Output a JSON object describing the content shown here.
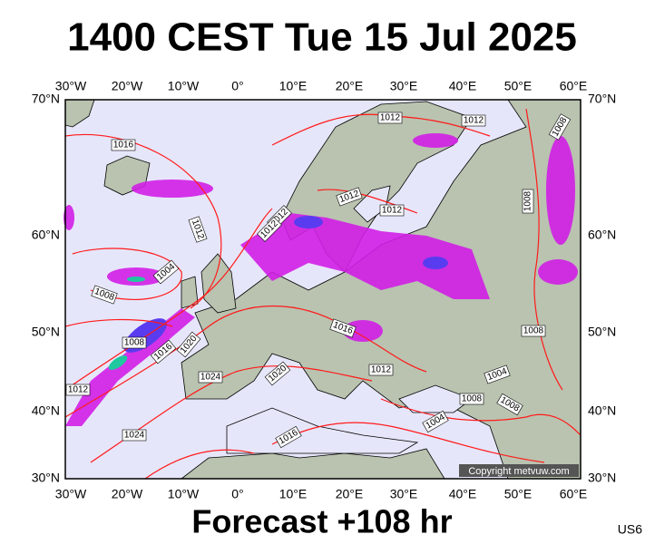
{
  "title": "1400 CEST Tue 15 Jul 2025",
  "lon_labels": [
    "30°W",
    "20°W",
    "10°W",
    "0°",
    "10°E",
    "20°E",
    "30°E",
    "40°E",
    "50°E",
    "60°E"
  ],
  "lat_labels": [
    "70°N",
    "60°N",
    "50°N",
    "40°N",
    "30°N"
  ],
  "isobar_labels": [
    1012,
    1012,
    1016,
    1008,
    1012,
    1012,
    1012,
    1012,
    1012,
    1008,
    1004,
    1008,
    1008,
    1016,
    1020,
    1016,
    1024,
    1020,
    1012,
    1008,
    1004,
    1008,
    1008,
    1012,
    1004,
    1024,
    1016
  ],
  "copyright": "Copyright metvuw.com",
  "footer": "Forecast +108 hr",
  "code": "US6"
}
